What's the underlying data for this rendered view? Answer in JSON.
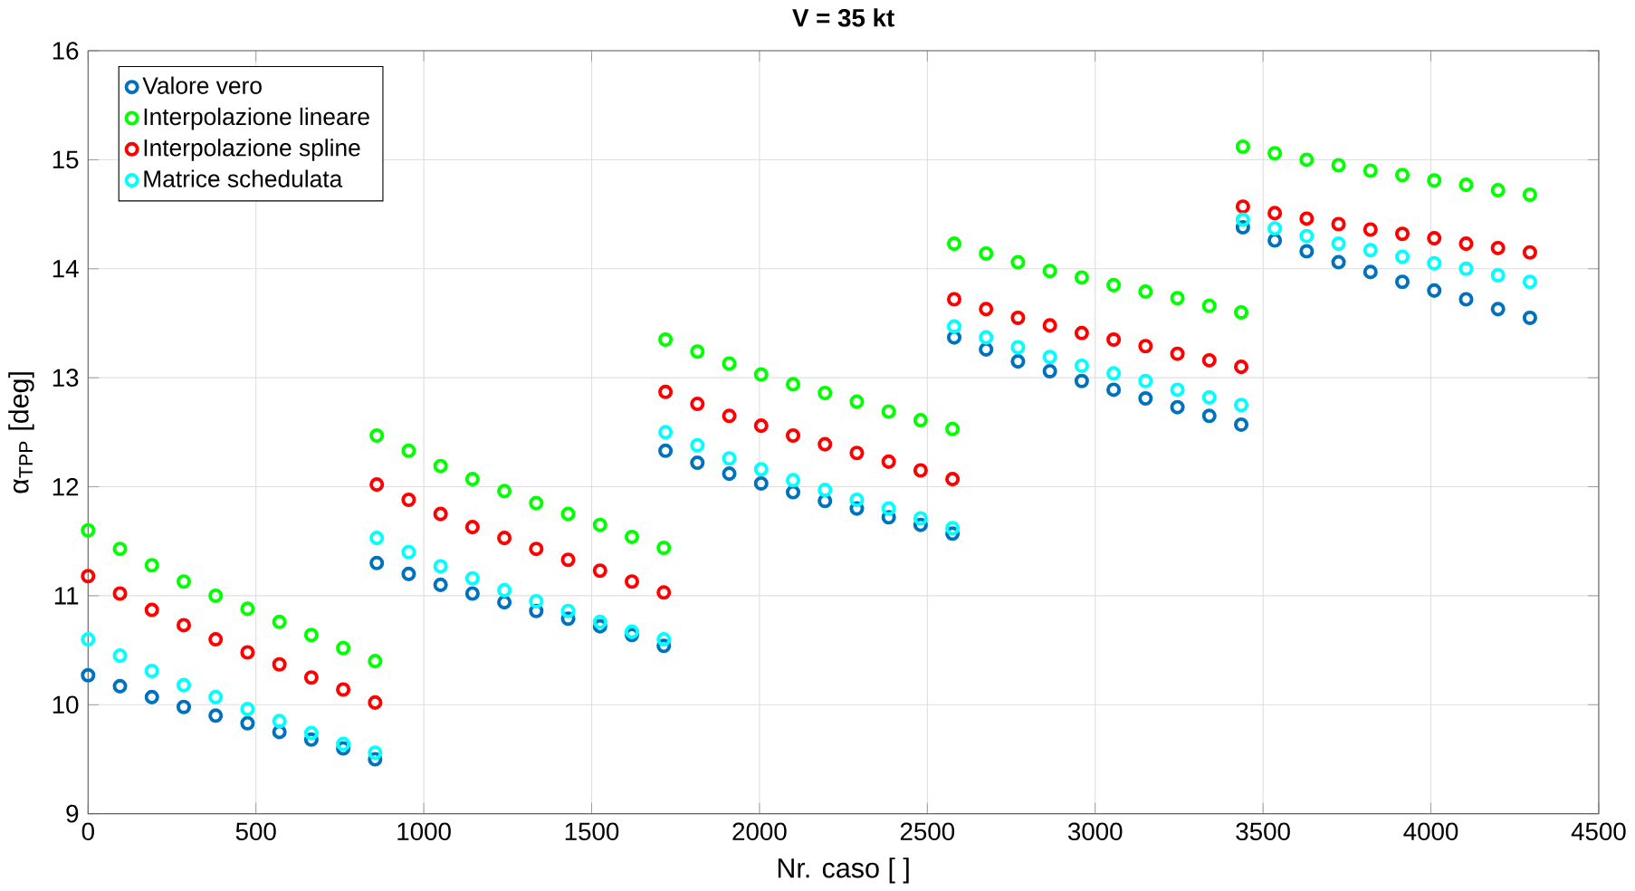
{
  "chart_data": {
    "type": "scatter",
    "title": "V = 35 kt",
    "xlabel": "Nr. caso [ ]",
    "ylabel": "α$_{TPP}$ [deg]",
    "x": [
      0,
      95,
      190,
      285,
      380,
      475,
      570,
      665,
      760,
      855,
      860,
      955,
      1050,
      1145,
      1240,
      1335,
      1430,
      1525,
      1620,
      1715,
      1720,
      1815,
      1910,
      2005,
      2100,
      2195,
      2290,
      2385,
      2480,
      2575,
      2580,
      2675,
      2770,
      2865,
      2960,
      3055,
      3150,
      3245,
      3340,
      3435,
      3440,
      3535,
      3630,
      3725,
      3820,
      3915,
      4010,
      4105,
      4200,
      4295
    ],
    "series": [
      {
        "name": "Valore vero",
        "color": "#0072bd",
        "values": [
          10.27,
          10.17,
          10.07,
          9.98,
          9.9,
          9.83,
          9.75,
          9.68,
          9.6,
          9.5,
          11.3,
          11.2,
          11.1,
          11.02,
          10.94,
          10.86,
          10.79,
          10.72,
          10.64,
          10.54,
          12.33,
          12.22,
          12.12,
          12.03,
          11.95,
          11.87,
          11.8,
          11.72,
          11.65,
          11.57,
          13.37,
          13.26,
          13.15,
          13.06,
          12.97,
          12.89,
          12.81,
          12.73,
          12.65,
          12.57,
          14.38,
          14.26,
          14.16,
          14.06,
          13.97,
          13.88,
          13.8,
          13.72,
          13.63,
          13.55
        ]
      },
      {
        "name": "Interpolazione lineare",
        "color": "#00ff00",
        "values": [
          11.6,
          11.43,
          11.28,
          11.13,
          11.0,
          10.88,
          10.76,
          10.64,
          10.52,
          10.4,
          12.47,
          12.33,
          12.19,
          12.07,
          11.96,
          11.85,
          11.75,
          11.65,
          11.54,
          11.44,
          13.35,
          13.24,
          13.13,
          13.03,
          12.94,
          12.86,
          12.78,
          12.69,
          12.61,
          12.53,
          14.23,
          14.14,
          14.06,
          13.98,
          13.92,
          13.85,
          13.79,
          13.73,
          13.66,
          13.6,
          15.12,
          15.06,
          15.0,
          14.95,
          14.9,
          14.86,
          14.81,
          14.77,
          14.72,
          14.68
        ]
      },
      {
        "name": "Interpolazione spline",
        "color": "#ff0000",
        "values": [
          11.18,
          11.02,
          10.87,
          10.73,
          10.6,
          10.48,
          10.37,
          10.25,
          10.14,
          10.02,
          12.02,
          11.88,
          11.75,
          11.63,
          11.53,
          11.43,
          11.33,
          11.23,
          11.13,
          11.03,
          12.87,
          12.76,
          12.65,
          12.56,
          12.47,
          12.39,
          12.31,
          12.23,
          12.15,
          12.07,
          13.72,
          13.63,
          13.55,
          13.48,
          13.41,
          13.35,
          13.29,
          13.22,
          13.16,
          13.1,
          14.57,
          14.51,
          14.46,
          14.41,
          14.36,
          14.32,
          14.28,
          14.23,
          14.19,
          14.15
        ]
      },
      {
        "name": "Matrice schedulata",
        "color": "#00ffff",
        "values": [
          10.6,
          10.45,
          10.31,
          10.18,
          10.07,
          9.96,
          9.85,
          9.74,
          9.64,
          9.56,
          11.53,
          11.4,
          11.27,
          11.16,
          11.05,
          10.95,
          10.86,
          10.76,
          10.67,
          10.6,
          12.5,
          12.38,
          12.26,
          12.16,
          12.06,
          11.97,
          11.88,
          11.8,
          11.71,
          11.62,
          13.47,
          13.37,
          13.28,
          13.19,
          13.11,
          13.04,
          12.97,
          12.89,
          12.82,
          12.75,
          14.45,
          14.37,
          14.3,
          14.23,
          14.17,
          14.11,
          14.05,
          14.0,
          13.94,
          13.88
        ]
      }
    ],
    "xlim": [
      0,
      4500
    ],
    "ylim": [
      9,
      16
    ],
    "xticks": [
      0,
      500,
      1000,
      1500,
      2000,
      2500,
      3000,
      3500,
      4000,
      4500
    ],
    "yticks": [
      9,
      10,
      11,
      12,
      13,
      14,
      15,
      16
    ],
    "grid": true,
    "legend": "top left",
    "marker": "circle"
  }
}
